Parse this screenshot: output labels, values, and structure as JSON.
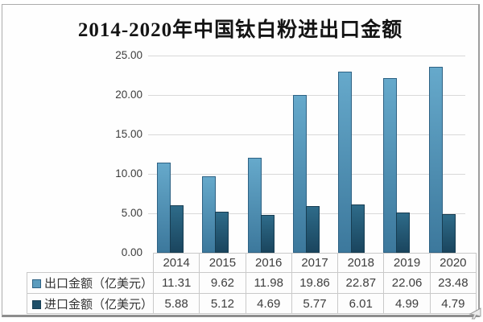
{
  "chart_data": {
    "type": "bar",
    "title": "2014-2020年中国钛白粉进出口金额",
    "categories": [
      "2014",
      "2015",
      "2016",
      "2017",
      "2018",
      "2019",
      "2020"
    ],
    "series": [
      {
        "name": "出口金额（亿美元）",
        "values": [
          11.31,
          9.62,
          11.98,
          19.86,
          22.87,
          22.06,
          23.48
        ],
        "color_top": "#66a9cb",
        "color_bottom": "#3c789c",
        "border_color": "#2e6284",
        "swatch_color": "#5b9cbe"
      },
      {
        "name": "进口金额（亿美元）",
        "values": [
          5.88,
          5.12,
          4.69,
          5.77,
          6.01,
          4.99,
          4.79
        ],
        "color_top": "#2e6b89",
        "color_bottom": "#1a455e",
        "border_color": "#173d52",
        "swatch_color": "#1f4f68"
      }
    ],
    "ylim": [
      0,
      25
    ],
    "ytick_step": 5,
    "yticks": [
      "25.00",
      "20.00",
      "15.00",
      "10.00",
      "5.00",
      "0.00"
    ],
    "grid": true,
    "gridline_color": "#d9d9d9",
    "legend_position": "table-left",
    "value_decimals": 2
  }
}
